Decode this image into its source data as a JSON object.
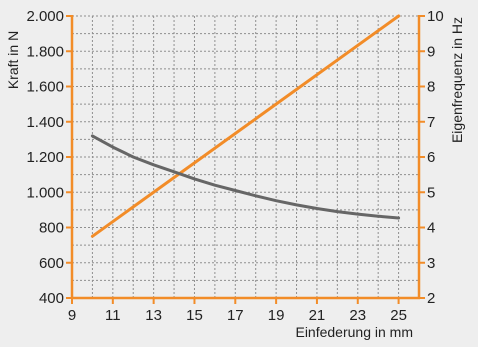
{
  "chart_data": {
    "type": "line",
    "title": "",
    "xlabel": "Einfederung in mm",
    "ylabel_left": "Kraft in N",
    "ylabel_right": "Eigenfrequenz in Hz",
    "xlim": [
      9,
      26
    ],
    "ylim_left": [
      400,
      2000
    ],
    "ylim_right": [
      2,
      10
    ],
    "x_ticks": [
      9,
      11,
      13,
      15,
      17,
      19,
      21,
      23,
      25
    ],
    "y_left_ticks": [
      400,
      600,
      800,
      1000,
      1200,
      1400,
      1600,
      1800,
      2000
    ],
    "y_left_tick_labels": [
      "400",
      "600",
      "800",
      "1.000",
      "1.200",
      "1.400",
      "1.600",
      "1.800",
      "2.000"
    ],
    "y_right_ticks": [
      2,
      3,
      4,
      5,
      6,
      7,
      8,
      9,
      10
    ],
    "grid": true,
    "series": [
      {
        "axis": "left",
        "color": "#f28c28",
        "x": [
          10,
          25
        ],
        "values": [
          750,
          2000
        ]
      },
      {
        "axis": "right",
        "color": "#666666",
        "x": [
          10,
          11,
          12,
          13,
          14,
          15,
          16,
          17,
          18,
          19,
          20,
          21,
          22,
          23,
          24,
          25
        ],
        "values": [
          6.6,
          6.28,
          6.0,
          5.78,
          5.58,
          5.38,
          5.2,
          5.05,
          4.9,
          4.76,
          4.64,
          4.54,
          4.45,
          4.38,
          4.32,
          4.27
        ]
      }
    ],
    "colors": {
      "axis": "#f28c28",
      "grid": "#8f8f8f",
      "background": "#eeeeee"
    }
  }
}
